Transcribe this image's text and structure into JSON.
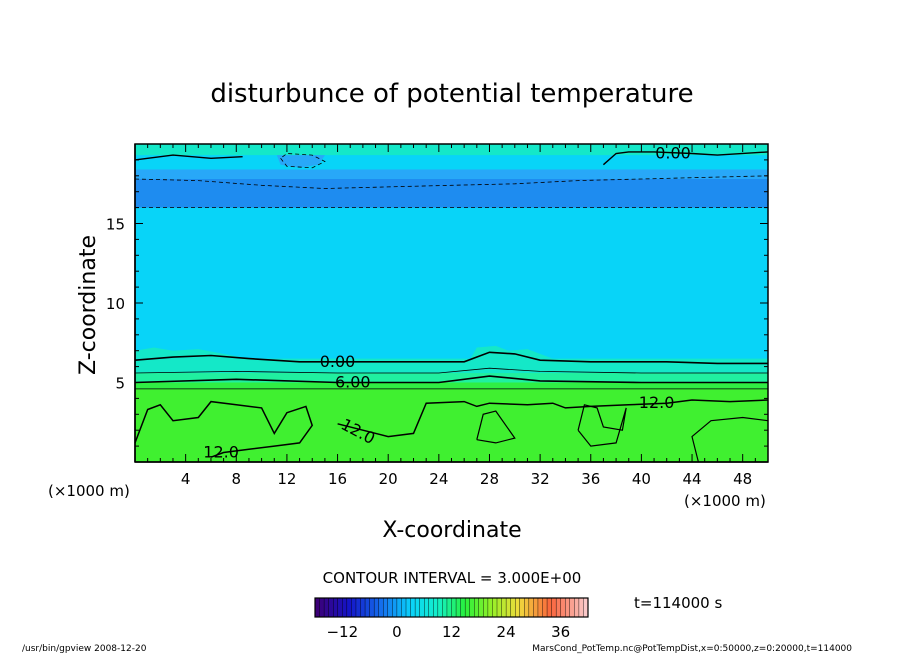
{
  "chart_data": {
    "type": "heatmap",
    "title": "disturbunce of potential temperature",
    "xlabel": "X-coordinate",
    "ylabel": "Z-coordinate",
    "x_unit_left": "(×1000 m)",
    "x_unit_right": "(×1000 m)",
    "xlim": [
      0,
      50
    ],
    "ylim": [
      0,
      20
    ],
    "x_ticks": [
      4,
      8,
      12,
      16,
      20,
      24,
      28,
      32,
      36,
      40,
      44,
      48
    ],
    "y_ticks": [
      5,
      10,
      15
    ],
    "contour_labels": [
      {
        "text": "0.00",
        "x": 42.5,
        "z": 19.4
      },
      {
        "text": "0.00",
        "x": 16.0,
        "z": 6.3
      },
      {
        "text": "6.00",
        "x": 17.2,
        "z": 5.0
      },
      {
        "text": "12.0",
        "x": 41.2,
        "z": 3.7
      },
      {
        "text": "12.0",
        "x": 17.6,
        "z": 1.9
      },
      {
        "text": "12.0",
        "x": 6.8,
        "z": 0.6
      }
    ],
    "contour_interval": "CONTOUR INTERVAL = 3.000E+00",
    "colorbar": {
      "ticks": [
        -12,
        0,
        12,
        24,
        36
      ],
      "range": [
        -18,
        42
      ]
    },
    "time_label": "t=114000 s",
    "colors": {
      "negative_band": "#1e8cf0",
      "near_zero": "#08d4f8",
      "positive_low": "#14e8c8",
      "positive_mid": "#20f0a0",
      "positive_high": "#30ee44",
      "lower_layer": "#40f030"
    }
  },
  "footer": {
    "left": "/usr/bin/gpview   2008-12-20",
    "right": "MarsCond_PotTemp.nc@PotTempDist,x=0:50000,z=0:20000,t=114000"
  }
}
